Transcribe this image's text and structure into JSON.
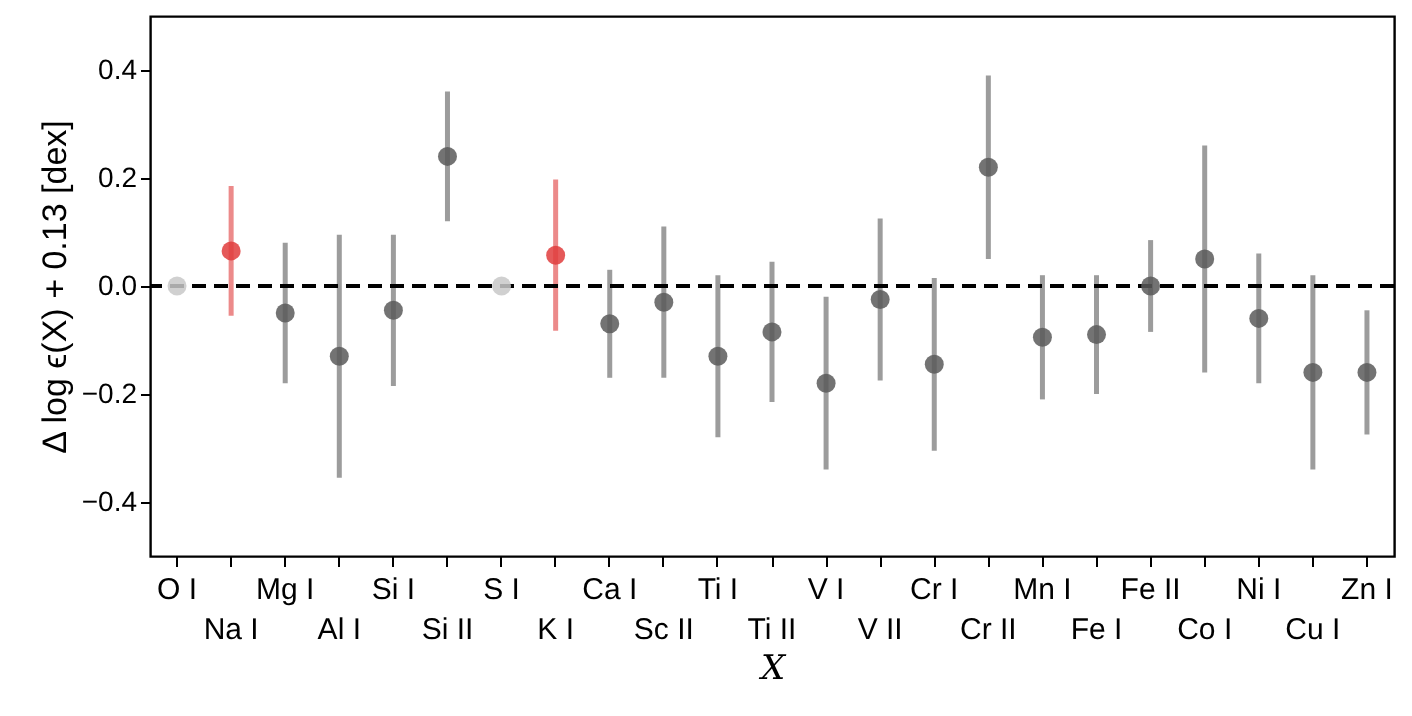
{
  "chart_data": {
    "type": "scatter",
    "xlabel": "X",
    "ylabel": "Δ log ϵ(X) + 0.13 [dex]",
    "categories": [
      "O I",
      "Na I",
      "Mg I",
      "Al I",
      "Si I",
      "Si II",
      "S I",
      "K I",
      "Ca I",
      "Sc II",
      "Ti I",
      "Ti II",
      "V I",
      "V II",
      "Cr I",
      "Cr II",
      "Mn I",
      "Fe I",
      "Fe II",
      "Co I",
      "Ni I",
      "Cu I",
      "Zn I"
    ],
    "values": [
      0,
      0.065,
      -0.05,
      -0.13,
      -0.045,
      0.24,
      0,
      0.057,
      -0.07,
      -0.03,
      -0.13,
      -0.085,
      -0.18,
      -0.025,
      -0.145,
      0.22,
      -0.095,
      -0.09,
      0,
      0.05,
      -0.06,
      -0.16,
      -0.16
    ],
    "errors": [
      null,
      0.12,
      0.13,
      0.225,
      0.14,
      0.12,
      null,
      0.14,
      0.1,
      0.14,
      0.15,
      0.13,
      0.16,
      0.15,
      0.16,
      0.17,
      0.115,
      0.11,
      0.085,
      0.21,
      0.12,
      0.18,
      0.115
    ],
    "colors": [
      "#c8c8c8",
      "#e03c3c",
      "#5a5a5a",
      "#5a5a5a",
      "#5a5a5a",
      "#5a5a5a",
      "#c8c8c8",
      "#e03c3c",
      "#5a5a5a",
      "#5a5a5a",
      "#5a5a5a",
      "#5a5a5a",
      "#5a5a5a",
      "#5a5a5a",
      "#5a5a5a",
      "#5a5a5a",
      "#5a5a5a",
      "#5a5a5a",
      "#5a5a5a",
      "#5a5a5a",
      "#5a5a5a",
      "#5a5a5a",
      "#5a5a5a"
    ],
    "marker": "circle",
    "ylim": [
      -0.5,
      0.5
    ],
    "yticks": [
      {
        "value": -0.4,
        "label": "−0.4"
      },
      {
        "value": -0.2,
        "label": "−0.2"
      },
      {
        "value": 0,
        "label": "0.0"
      },
      {
        "value": 0.2,
        "label": "0.2"
      },
      {
        "value": 0.4,
        "label": "0.4"
      }
    ],
    "ref_lines": [
      {
        "axis": "y",
        "value": 0,
        "color": "#000000",
        "line_style": "dashed"
      }
    ],
    "grid": false
  }
}
